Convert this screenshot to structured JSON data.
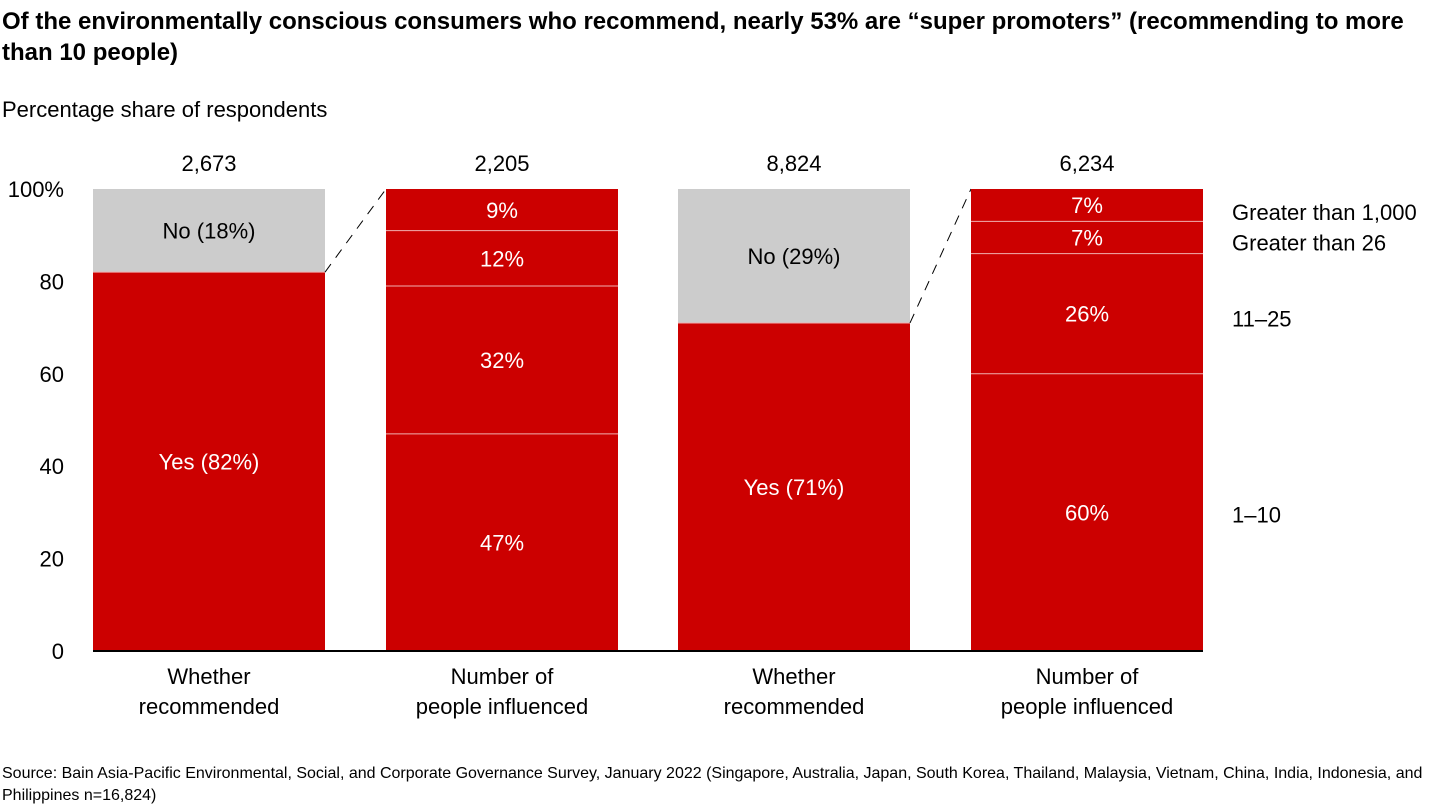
{
  "chart_data": {
    "type": "bar",
    "stacked": true,
    "title": "Of the environmentally conscious consumers who recommend, nearly 53% are “super promoters” (recommending to more than 10 people)",
    "ylabel": "Percentage share of respondents",
    "ylim": [
      0,
      100
    ],
    "yticks": [
      "0",
      "20",
      "40",
      "60",
      "80",
      "100%"
    ],
    "grid": false,
    "bars": [
      {
        "category": "Whether recommended",
        "count": "2,673",
        "segments": [
          {
            "label": "Yes (82%)",
            "value": 82,
            "color": "#cc0000"
          },
          {
            "label": "No (18%)",
            "value": 18,
            "color": "#cccccc"
          }
        ]
      },
      {
        "category": "Number of people influenced",
        "count": "2,205",
        "segments": [
          {
            "label": "47%",
            "value": 47,
            "color": "#cc0000"
          },
          {
            "label": "32%",
            "value": 32,
            "color": "#cc0000"
          },
          {
            "label": "12%",
            "value": 12,
            "color": "#cc0000"
          },
          {
            "label": "9%",
            "value": 9,
            "color": "#cc0000"
          }
        ]
      },
      {
        "category": "Whether recommended",
        "count": "8,824",
        "segments": [
          {
            "label": "Yes (71%)",
            "value": 71,
            "color": "#cc0000"
          },
          {
            "label": "No (29%)",
            "value": 29,
            "color": "#cccccc"
          }
        ]
      },
      {
        "category": "Number of people influenced",
        "count": "6,234",
        "segments": [
          {
            "label": "60%",
            "value": 60,
            "color": "#cc0000"
          },
          {
            "label": "26%",
            "value": 26,
            "color": "#cc0000"
          },
          {
            "label": "7%",
            "value": 7,
            "color": "#cc0000"
          },
          {
            "label": "7%",
            "value": 7,
            "color": "#cc0000"
          }
        ]
      }
    ],
    "segment_legend": [
      "1–10",
      "11–25",
      "Greater than 26",
      "Greater than 1,000"
    ]
  },
  "source": "Source: Bain Asia-Pacific Environmental, Social, and Corporate Governance Survey, January 2022 (Singapore, Australia, Japan, South Korea, Thailand, Malaysia, Vietnam, China, India, Indonesia, and Philippines n=16,824)"
}
